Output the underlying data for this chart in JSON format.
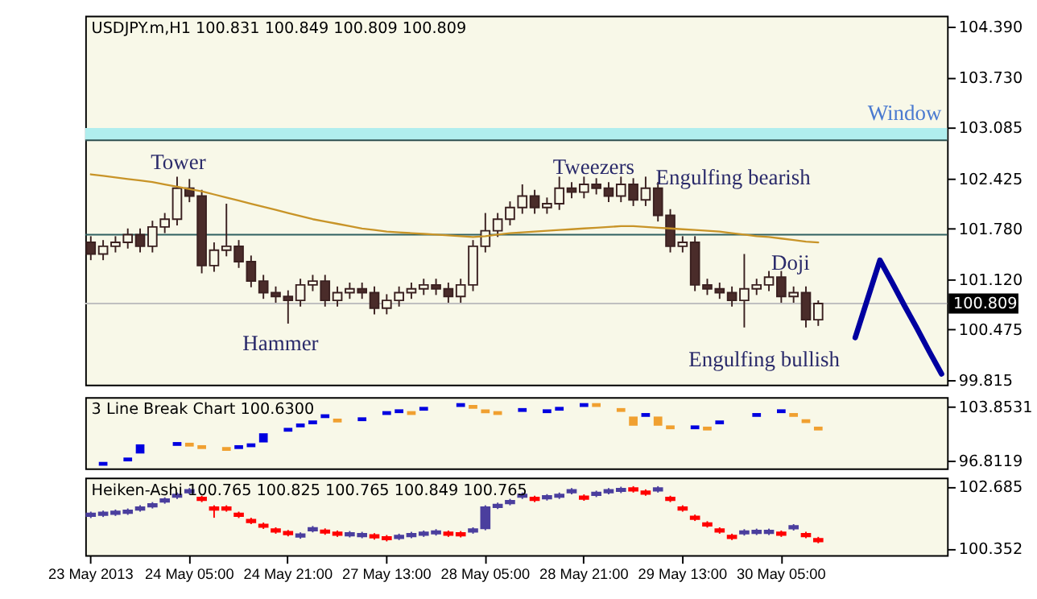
{
  "chart_data": [
    {
      "type": "candlestick",
      "title": "USDJPY.m,H1 100.831 100.849 100.809 100.809",
      "tick_labels": "y",
      "categories": [
        null,
        null,
        null,
        null,
        null,
        null,
        null,
        null,
        null,
        null,
        null,
        null,
        null,
        null,
        null,
        null,
        null,
        null,
        null,
        null,
        null,
        null,
        null,
        null,
        null,
        null,
        null,
        null,
        null,
        null,
        null,
        null,
        null,
        null,
        null,
        null,
        null,
        null,
        null,
        null,
        null,
        null,
        null,
        null,
        null,
        null,
        null,
        null,
        null,
        null,
        null,
        null,
        null,
        null,
        null,
        null,
        null,
        null,
        null,
        null,
        null,
        null,
        null,
        null,
        null,
        null,
        null,
        null,
        null,
        null
      ],
      "ylim": [
        99.76,
        104.53
      ],
      "yticks": [
        {
          "value": 104.39,
          "label": "104.390"
        },
        {
          "value": 103.73,
          "label": "103.730"
        },
        103.085,
        102.425,
        {
          "value": 101.78,
          "label": "101.780"
        },
        {
          "value": 101.12,
          "label": "101.120"
        },
        100.475,
        99.815
      ],
      "series": [
        {
          "type": "candlestick",
          "color": "#3a2020",
          "colors": [
            "#4a2c2a",
            "#f8f8e8",
            "#f8f8e8",
            "#f8f8e8",
            "#4a2c2a",
            "#f8f8e8",
            "#f8f8e8",
            "#f8f8e8",
            "#4a2c2a",
            "#4a2c2a",
            "#f8f8e8",
            "#f8f8e8",
            "#4a2c2a",
            "#4a2c2a",
            "#4a2c2a",
            "#4a2c2a",
            "#4a2c2a",
            "#f8f8e8",
            "#f8f8e8",
            "#4a2c2a",
            "#f8f8e8",
            "#f8f8e8",
            "#4a2c2a",
            "#4a2c2a",
            "#f8f8e8",
            "#f8f8e8",
            "#f8f8e8",
            "#f8f8e8",
            "#4a2c2a",
            "#4a2c2a",
            "#f8f8e8",
            "#f8f8e8",
            "#f8f8e8",
            "#f8f8e8",
            "#f8f8e8",
            "#f8f8e8",
            "#4a2c2a",
            "#f8f8e8",
            "#f8f8e8",
            "#4a2c2a",
            "#f8f8e8",
            "#4a2c2a",
            "#4a2c2a",
            "#f8f8e8",
            "#4a2c2a",
            "#f8f8e8",
            "#4a2c2a",
            "#4a2c2a",
            "#f8f8e8",
            "#4a2c2a",
            "#4a2c2a",
            "#4a2c2a",
            "#4a2c2a",
            "#f8f8e8",
            "#f8f8e8",
            "#f8f8e8",
            "#4a2c2a",
            "#f8f8e8",
            "#4a2c2a",
            "#f8f8e8",
            null,
            null,
            null,
            null,
            null,
            null,
            null,
            null,
            null,
            null
          ],
          "ohlc": [
            [
              101.6,
              101.68,
              101.37,
              101.45
            ],
            [
              101.45,
              101.63,
              101.37,
              101.55
            ],
            [
              101.55,
              101.68,
              101.47,
              101.6
            ],
            [
              101.6,
              101.78,
              101.52,
              101.7
            ],
            [
              101.7,
              101.78,
              101.47,
              101.55
            ],
            [
              101.55,
              101.88,
              101.47,
              101.8
            ],
            [
              101.8,
              101.98,
              101.72,
              101.9
            ],
            [
              101.9,
              102.45,
              101.82,
              102.3
            ],
            [
              102.3,
              102.42,
              102.12,
              102.2
            ],
            [
              102.2,
              102.28,
              101.2,
              101.3
            ],
            [
              101.3,
              101.6,
              101.22,
              101.5
            ],
            [
              101.5,
              102.1,
              101.42,
              101.55
            ],
            [
              101.55,
              101.63,
              101.27,
              101.35
            ],
            [
              101.35,
              101.43,
              101.02,
              101.1
            ],
            [
              101.1,
              101.18,
              100.87,
              100.95
            ],
            [
              100.95,
              101.03,
              100.82,
              100.9
            ],
            [
              100.9,
              100.98,
              100.55,
              100.85
            ],
            [
              100.85,
              101.13,
              100.77,
              101.05
            ],
            [
              101.05,
              101.18,
              100.97,
              101.1
            ],
            [
              101.1,
              101.18,
              100.77,
              100.85
            ],
            [
              100.85,
              101.03,
              100.77,
              100.95
            ],
            [
              100.95,
              101.08,
              100.87,
              101.0
            ],
            [
              101.0,
              101.08,
              100.87,
              100.95
            ],
            [
              100.95,
              101.03,
              100.67,
              100.75
            ],
            [
              100.75,
              100.93,
              100.67,
              100.85
            ],
            [
              100.85,
              101.03,
              100.77,
              100.95
            ],
            [
              100.95,
              101.08,
              100.87,
              101.0
            ],
            [
              101.0,
              101.13,
              100.92,
              101.05
            ],
            [
              101.05,
              101.13,
              100.92,
              101.0
            ],
            [
              101.0,
              101.08,
              100.82,
              100.9
            ],
            [
              100.9,
              101.13,
              100.82,
              101.05
            ],
            [
              101.05,
              101.63,
              100.97,
              101.55
            ],
            [
              101.55,
              101.98,
              101.47,
              101.75
            ],
            [
              101.75,
              101.98,
              101.67,
              101.9
            ],
            [
              101.9,
              102.13,
              101.82,
              102.05
            ],
            [
              102.05,
              102.35,
              101.97,
              102.2
            ],
            [
              102.2,
              102.28,
              101.97,
              102.05
            ],
            [
              102.05,
              102.18,
              101.97,
              102.1
            ],
            [
              102.1,
              102.45,
              102.02,
              102.3
            ],
            [
              102.3,
              102.38,
              102.17,
              102.25
            ],
            [
              102.25,
              102.45,
              102.17,
              102.35
            ],
            [
              102.35,
              102.43,
              102.22,
              102.3
            ],
            [
              102.3,
              102.38,
              102.12,
              102.2
            ],
            [
              102.2,
              102.45,
              102.12,
              102.35
            ],
            [
              102.35,
              102.43,
              102.07,
              102.15
            ],
            [
              102.15,
              102.45,
              102.07,
              102.3
            ],
            [
              102.3,
              102.38,
              101.87,
              101.95
            ],
            [
              101.95,
              102.03,
              101.47,
              101.55
            ],
            [
              101.55,
              101.68,
              101.47,
              101.6
            ],
            [
              101.6,
              101.68,
              100.97,
              101.05
            ],
            [
              101.05,
              101.13,
              100.92,
              101.0
            ],
            [
              101.0,
              101.08,
              100.87,
              100.95
            ],
            [
              100.95,
              101.03,
              100.77,
              100.85
            ],
            [
              100.85,
              101.45,
              100.5,
              101.0
            ],
            [
              101.0,
              101.13,
              100.92,
              101.05
            ],
            [
              101.05,
              101.23,
              100.97,
              101.15
            ],
            [
              101.15,
              101.23,
              100.82,
              100.9
            ],
            [
              100.9,
              101.03,
              100.82,
              100.95
            ],
            [
              100.95,
              101.03,
              100.5,
              100.6
            ],
            [
              100.6,
              100.85,
              100.52,
              100.809
            ],
            null,
            null,
            null,
            null,
            null,
            null,
            null,
            null,
            null,
            null
          ]
        },
        {
          "type": "line",
          "color": "#c89428",
          "values": [
            102.48,
            102.46,
            102.44,
            102.42,
            102.4,
            102.38,
            102.35,
            102.32,
            102.29,
            102.26,
            102.22,
            102.18,
            102.14,
            102.1,
            102.06,
            102.02,
            101.98,
            101.94,
            101.9,
            101.87,
            101.84,
            101.81,
            101.78,
            101.76,
            101.74,
            101.73,
            101.72,
            101.71,
            101.7,
            101.69,
            101.68,
            101.67,
            101.68,
            101.7,
            101.72,
            101.73,
            101.74,
            101.75,
            101.76,
            101.77,
            101.78,
            101.79,
            101.8,
            101.81,
            101.81,
            101.8,
            101.79,
            101.78,
            101.77,
            101.76,
            101.75,
            101.74,
            101.72,
            101.7,
            101.68,
            101.67,
            101.65,
            101.63,
            101.61,
            101.6,
            null,
            null,
            null,
            null,
            null,
            null,
            null,
            null,
            null,
            null
          ]
        },
        {
          "type": "line",
          "color": "#0000a0",
          "values": [
            null,
            null,
            null,
            null,
            null,
            null,
            null,
            null,
            null,
            null,
            null,
            null,
            null,
            null,
            null,
            null,
            null,
            null,
            null,
            null,
            null,
            null,
            null,
            null,
            null,
            null,
            null,
            null,
            null,
            null,
            null,
            null,
            null,
            null,
            null,
            null,
            null,
            null,
            null,
            null,
            null,
            null,
            null,
            null,
            null,
            null,
            null,
            null,
            null,
            null,
            null,
            null,
            null,
            null,
            null,
            null,
            null,
            null,
            null,
            null,
            null,
            null,
            100.37,
            100.87,
            101.37,
            101.08,
            100.78,
            100.49,
            100.19,
            99.9
          ]
        }
      ],
      "bands": [
        {
          "axis": "y",
          "from": 102.92,
          "to": 103.08,
          "label": "Window",
          "color": "#b0eeee"
        }
      ],
      "ref_lines": [
        {
          "axis": "y",
          "value": 102.92,
          "color": "#2f5050"
        },
        {
          "axis": "y",
          "value": 101.7,
          "color": "#2f6060"
        },
        {
          "axis": "y",
          "value": 100.809,
          "label": "100.809",
          "color": "#c0c0c0"
        }
      ],
      "annotations": [
        "Tower",
        "Hammer",
        "Tweezers",
        "Engulfing bearish",
        "Doji",
        "Engulfing bullish"
      ]
    },
    {
      "type": "bar",
      "title": "3 Line Break Chart 100.6300",
      "tick_labels": "y",
      "categories": [
        null,
        null,
        null,
        null,
        null,
        null,
        null,
        null,
        null,
        null,
        null,
        null,
        null,
        null,
        null,
        null,
        null,
        null,
        null,
        null,
        null,
        null,
        null,
        null,
        null,
        null,
        null,
        null,
        null,
        null,
        null,
        null,
        null,
        null,
        null,
        null,
        null,
        null,
        null,
        null,
        null,
        null,
        null,
        null,
        null,
        null,
        null,
        null,
        null,
        null,
        null,
        null,
        null,
        null,
        null,
        null,
        null,
        null,
        null,
        null,
        null,
        null,
        null,
        null,
        null,
        null,
        null,
        null,
        null,
        null
      ],
      "ylim": [
        95.8,
        105.14
      ],
      "yticks": [
        103.8531,
        96.8119
      ],
      "values": [
        null,
        0.5,
        null,
        0.5,
        1.2,
        null,
        null,
        0.5,
        0.5,
        0.5,
        null,
        0.5,
        0.5,
        0.5,
        1.2,
        null,
        0.5,
        0.5,
        0.5,
        0.5,
        0.5,
        null,
        0.5,
        null,
        0.5,
        0.5,
        0.5,
        0.5,
        null,
        null,
        0.5,
        0.5,
        0.5,
        0.5,
        null,
        0.5,
        null,
        0.5,
        0.5,
        null,
        0.5,
        0.5,
        null,
        0.5,
        1.2,
        0.5,
        1.2,
        0.5,
        null,
        0.5,
        0.5,
        0.5,
        null,
        null,
        0.5,
        null,
        0.5,
        0.5,
        0.5,
        0.5,
        null,
        null,
        null,
        null,
        null,
        null,
        null,
        null,
        null,
        null
      ],
      "base": [
        null,
        96.15,
        null,
        96.72,
        97.75,
        null,
        null,
        98.75,
        98.66,
        98.34,
        null,
        98.1,
        98.34,
        98.58,
        99.2,
        null,
        100.61,
        101.18,
        101.58,
        102.39,
        101.82,
        null,
        101.99,
        null,
        102.8,
        103.04,
        102.8,
        103.36,
        null,
        null,
        103.85,
        103.61,
        103.04,
        102.8,
        null,
        103.2,
        null,
        103.04,
        103.36,
        null,
        103.85,
        103.85,
        null,
        103.2,
        101.39,
        102.55,
        101.39,
        100.93,
        null,
        100.93,
        100.77,
        101.58,
        null,
        null,
        102.55,
        null,
        103.04,
        102.55,
        101.74,
        100.77,
        null,
        null,
        null,
        null,
        null,
        null,
        null,
        null,
        null,
        null
      ],
      "colors": [
        null,
        "#0000e0",
        null,
        "#0000e0",
        "#0000e0",
        null,
        null,
        "#0000e0",
        "#f0a030",
        "#f0a030",
        null,
        "#f0a030",
        "#0000e0",
        "#0000e0",
        "#0000e0",
        null,
        "#0000e0",
        "#0000e0",
        "#0000e0",
        "#0000e0",
        "#f0a030",
        null,
        "#0000e0",
        null,
        "#0000e0",
        "#0000e0",
        "#f0a030",
        "#0000e0",
        null,
        null,
        "#0000e0",
        "#f0a030",
        "#f0a030",
        "#f0a030",
        null,
        "#0000e0",
        null,
        "#0000e0",
        "#0000e0",
        null,
        "#0000e0",
        "#f0a030",
        null,
        "#f0a030",
        "#f0a030",
        "#0000e0",
        "#f0a030",
        "#f0a030",
        null,
        "#0000e0",
        "#f0a030",
        "#0000e0",
        null,
        null,
        "#0000e0",
        null,
        "#0000e0",
        "#f0a030",
        "#f0a030",
        "#f0a030",
        null,
        null,
        null,
        null,
        null,
        null,
        null,
        null,
        null,
        null
      ]
    },
    {
      "type": "candlestick",
      "title": "Heiken-Ashi 100.765 100.825 100.765 100.849 100.765",
      "categories": [
        "23 May 2013",
        null,
        null,
        null,
        null,
        null,
        null,
        null,
        "24 May 05:00",
        null,
        null,
        null,
        null,
        null,
        null,
        null,
        "24 May 21:00",
        null,
        null,
        null,
        null,
        null,
        null,
        null,
        "27 May 13:00",
        null,
        null,
        null,
        null,
        null,
        null,
        null,
        "28 May 05:00",
        null,
        null,
        null,
        null,
        null,
        null,
        null,
        "28 May 21:00",
        null,
        null,
        null,
        null,
        null,
        null,
        null,
        "29 May 13:00",
        null,
        null,
        null,
        null,
        null,
        null,
        null,
        "30 May 05:00",
        null,
        null,
        null,
        null,
        null,
        null,
        null,
        null,
        null,
        null,
        null,
        null,
        null
      ],
      "ylim": [
        100.09,
        103.01
      ],
      "yticks": [
        102.685,
        100.352
      ],
      "series": [
        {
          "type": "candlestick",
          "colors": [
            "#4b3f9e",
            "#4b3f9e",
            "#4b3f9e",
            "#4b3f9e",
            "#4b3f9e",
            "#4b3f9e",
            "#4b3f9e",
            "#4b3f9e",
            "#4b3f9e",
            "#ff0000",
            "#ff0000",
            "#ff0000",
            "#ff0000",
            "#ff0000",
            "#ff0000",
            "#ff0000",
            "#ff0000",
            "#4b3f9e",
            "#4b3f9e",
            "#ff0000",
            "#ff0000",
            "#4b3f9e",
            "#4b3f9e",
            "#ff0000",
            "#ff0000",
            "#4b3f9e",
            "#4b3f9e",
            "#4b3f9e",
            "#4b3f9e",
            "#ff0000",
            "#ff0000",
            "#4b3f9e",
            "#4b3f9e",
            "#4b3f9e",
            "#4b3f9e",
            "#4b3f9e",
            "#ff0000",
            "#4b3f9e",
            "#4b3f9e",
            "#4b3f9e",
            "#ff0000",
            "#4b3f9e",
            "#4b3f9e",
            "#4b3f9e",
            "#ff0000",
            "#ff0000",
            "#4b3f9e",
            "#ff0000",
            "#ff0000",
            "#ff0000",
            "#ff0000",
            "#ff0000",
            "#ff0000",
            "#4b3f9e",
            "#4b3f9e",
            "#4b3f9e",
            "#ff0000",
            "#4b3f9e",
            "#ff0000",
            "#ff0000",
            null,
            null,
            null,
            null,
            null,
            null,
            null,
            null,
            null,
            null
          ],
          "ohlc": [
            [
              101.56,
              101.73,
              101.49,
              101.66
            ],
            [
              101.6,
              101.77,
              101.53,
              101.7
            ],
            [
              101.64,
              101.81,
              101.57,
              101.74
            ],
            [
              101.68,
              101.85,
              101.61,
              101.78
            ],
            [
              101.8,
              101.97,
              101.73,
              101.9
            ],
            [
              101.92,
              102.09,
              101.85,
              102.02
            ],
            [
              102.1,
              102.27,
              102.03,
              102.2
            ],
            [
              102.28,
              102.45,
              102.21,
              102.38
            ],
            [
              102.45,
              102.62,
              102.38,
              102.55
            ],
            [
              102.26,
              102.33,
              102.09,
              102.16
            ],
            [
              101.9,
              101.97,
              101.5,
              101.8
            ],
            [
              101.9,
              101.97,
              101.73,
              101.8
            ],
            [
              101.66,
              101.73,
              101.49,
              101.56
            ],
            [
              101.43,
              101.5,
              101.26,
              101.33
            ],
            [
              101.25,
              101.32,
              101.08,
              101.15
            ],
            [
              101.07,
              101.14,
              100.9,
              100.97
            ],
            [
              100.97,
              101.04,
              100.8,
              100.87
            ],
            [
              100.78,
              100.95,
              100.71,
              100.88
            ],
            [
              101.02,
              101.19,
              100.95,
              101.12
            ],
            [
              101.03,
              101.1,
              100.86,
              100.93
            ],
            [
              100.95,
              101.02,
              100.78,
              100.85
            ],
            [
              100.83,
              101.0,
              100.76,
              100.93
            ],
            [
              100.8,
              100.97,
              100.73,
              100.9
            ],
            [
              100.85,
              100.92,
              100.68,
              100.75
            ],
            [
              100.78,
              100.85,
              100.61,
              100.68
            ],
            [
              100.73,
              100.9,
              100.66,
              100.83
            ],
            [
              100.8,
              100.97,
              100.73,
              100.9
            ],
            [
              100.85,
              101.02,
              100.78,
              100.95
            ],
            [
              100.9,
              101.07,
              100.83,
              101.0
            ],
            [
              100.95,
              101.02,
              100.78,
              100.85
            ],
            [
              100.93,
              101.0,
              100.76,
              100.83
            ],
            [
              100.97,
              101.14,
              100.9,
              101.07
            ],
            [
              101.1,
              101.97,
              101.03,
              101.9
            ],
            [
              101.9,
              102.07,
              101.83,
              102.0
            ],
            [
              102.04,
              102.21,
              101.97,
              102.14
            ],
            [
              102.28,
              102.45,
              102.21,
              102.38
            ],
            [
              102.26,
              102.33,
              102.09,
              102.16
            ],
            [
              102.22,
              102.39,
              102.15,
              102.32
            ],
            [
              102.28,
              102.45,
              102.21,
              102.38
            ],
            [
              102.45,
              102.62,
              102.38,
              102.55
            ],
            [
              102.31,
              102.38,
              102.14,
              102.21
            ],
            [
              102.35,
              102.52,
              102.28,
              102.45
            ],
            [
              102.45,
              102.62,
              102.38,
              102.55
            ],
            [
              102.5,
              102.67,
              102.43,
              102.6
            ],
            [
              102.62,
              102.69,
              102.45,
              102.52
            ],
            [
              102.5,
              102.57,
              102.33,
              102.4
            ],
            [
              102.52,
              102.69,
              102.45,
              102.62
            ],
            [
              102.26,
              102.33,
              102.09,
              102.16
            ],
            [
              101.9,
              101.97,
              101.73,
              101.8
            ],
            [
              101.55,
              101.62,
              101.38,
              101.45
            ],
            [
              101.3,
              101.37,
              101.13,
              101.2
            ],
            [
              101.07,
              101.14,
              100.9,
              100.97
            ],
            [
              100.83,
              100.9,
              100.66,
              100.73
            ],
            [
              100.9,
              101.07,
              100.83,
              101.0
            ],
            [
              100.92,
              101.09,
              100.85,
              101.02
            ],
            [
              100.92,
              101.09,
              100.85,
              101.02
            ],
            [
              100.95,
              101.02,
              100.78,
              100.85
            ],
            [
              101.09,
              101.26,
              101.02,
              101.19
            ],
            [
              100.9,
              100.97,
              100.73,
              100.8
            ],
            [
              100.71,
              100.78,
              100.54,
              100.61
            ],
            null,
            null,
            null,
            null,
            null,
            null,
            null,
            null,
            null,
            null
          ]
        }
      ]
    }
  ]
}
